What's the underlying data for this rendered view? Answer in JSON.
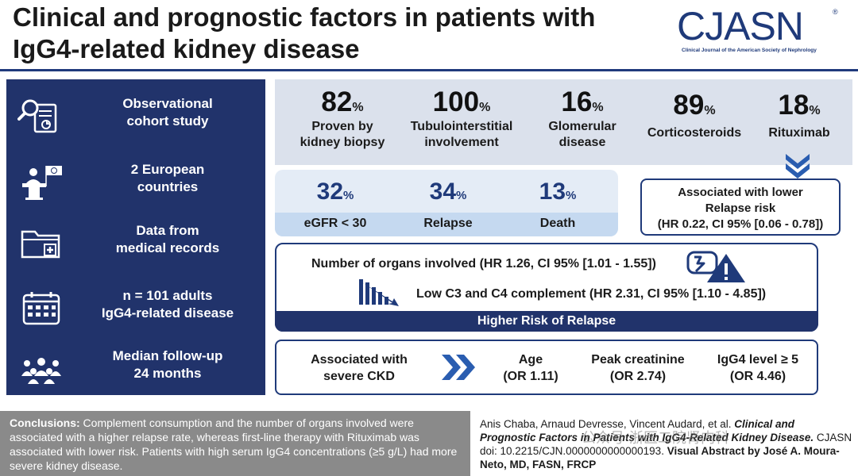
{
  "header": {
    "title_line1": "Clinical and prognostic factors in patients with",
    "title_line2": "IgG4-related kidney disease",
    "logo_text": "CJASN",
    "logo_subtitle": "Clinical Journal of the American Society of Nephrology"
  },
  "sidebar": {
    "items": [
      {
        "line1": "Observational",
        "line2": "cohort study",
        "icon": "magnifier-document-icon"
      },
      {
        "line1": "2 European",
        "line2": "countries",
        "icon": "speaker-podium-icon"
      },
      {
        "line1": "Data from",
        "line2": "medical records",
        "icon": "medical-folder-icon"
      },
      {
        "line1": "n = 101 adults",
        "line2": "IgG4-related disease",
        "icon": "calendar-icon"
      },
      {
        "line1": "Median follow-up",
        "line2": "24 months",
        "icon": "people-group-icon"
      }
    ]
  },
  "top_stats": [
    {
      "value": "82",
      "pct": "%",
      "line1": "Proven by",
      "line2": "kidney biopsy"
    },
    {
      "value": "100",
      "pct": "%",
      "line1": "Tubulointerstitial",
      "line2": "involvement"
    },
    {
      "value": "16",
      "pct": "%",
      "line1": "Glomerular",
      "line2": "disease"
    },
    {
      "value": "89",
      "pct": "%",
      "line1": "Corticosteroids",
      "line2": ""
    },
    {
      "value": "18",
      "pct": "%",
      "line1": "Rituximab",
      "line2": ""
    }
  ],
  "mid_stats": [
    {
      "value": "32",
      "pct": "%",
      "label": "eGFR < 30"
    },
    {
      "value": "34",
      "pct": "%",
      "label": "Relapse"
    },
    {
      "value": "13",
      "pct": "%",
      "label": "Death"
    }
  ],
  "lower_relapse": {
    "line1": "Associated with lower",
    "line2": "Relapse risk",
    "line3": "(HR 0.22, CI 95% [0.06 - 0.78])"
  },
  "relapse": {
    "organs": "Number of organs involved (HR 1.26, CI 95% [1.01 - 1.55])",
    "complement": "Low C3 and C4 complement (HR 2.31, CI 95% [1.10 - 4.85])",
    "bar": "Higher Risk of Relapse"
  },
  "ckd": {
    "head_line1": "Associated with",
    "head_line2": "severe CKD",
    "items": [
      {
        "line1": "Age",
        "line2": "(OR 1.11)"
      },
      {
        "line1": "Peak creatinine",
        "line2": "(OR 2.74)"
      },
      {
        "line1": "IgG4 level ≥ 5",
        "line2": "(OR 4.46)"
      }
    ]
  },
  "footer": {
    "conclusions_label": "Conclusions:",
    "conclusions_text": " Complement consumption and the number of organs involved were associated with a higher relapse rate, whereas first-line therapy with Rituximab was associated with lower risk. Patients with high serum IgG4 concentrations (≥5 g/L) had more severe kidney disease.",
    "citation_authors": "Anis Chaba, Arnaud Devresse, Vincent Audard, et al. ",
    "citation_title": "Clinical and Prognostic Factors in Patients with IgG4-Related Kidney Disease.",
    "citation_doi": " CJASN doi: 10.2215/CJN.0000000000000193. ",
    "citation_credit": "Visual Abstract by José A. Moura-Neto, MD, FASN, FRCP",
    "watermark": "公众号·浙医二院肾内科"
  },
  "colors": {
    "navy": "#21336b",
    "brand_blue": "#1f3a7a",
    "stats_bg": "#dbe1ec",
    "alert_blue": "#2a5db0",
    "footer_gray": "#8a8a8a"
  }
}
